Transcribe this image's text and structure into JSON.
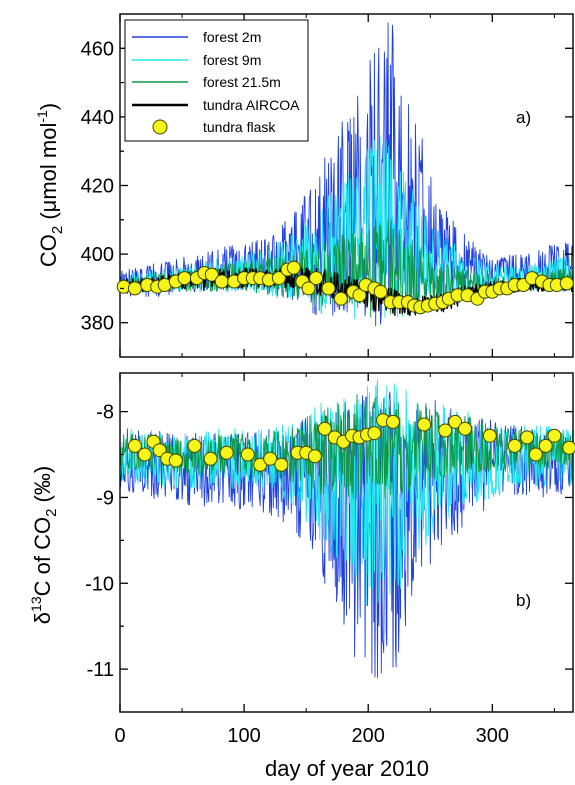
{
  "chart_data": [
    {
      "panel_label": "a)",
      "type": "line",
      "ylabel_main": "CO",
      "ylabel_sub": "2",
      "ylabel_unit": " (μmol mol",
      "ylabel_sup": "-1",
      "ylabel_close": ")",
      "xlim": [
        0,
        365
      ],
      "ylim": [
        370,
        470
      ],
      "yticks": [
        380,
        400,
        420,
        440,
        460
      ],
      "xticks": [
        0,
        100,
        200,
        300
      ],
      "legend_placement": "top-left",
      "legend": {
        "forest2": "forest 2m",
        "forest9": "forest 9m",
        "forest21": "forest 21.5m",
        "aircoa": "tundra AIRCOA",
        "flask": "tundra flask"
      },
      "colors": {
        "forest2": "#1f3fe0",
        "forest9": "#22e6f0",
        "forest21": "#0f9a4a",
        "aircoa": "#000000",
        "flask_fill": "#f5f51a",
        "flask_edge": "#444400"
      },
      "series_envelopes": {
        "note_days": [
          0,
          20,
          40,
          60,
          80,
          100,
          120,
          140,
          150,
          160,
          170,
          180,
          190,
          200,
          210,
          220,
          230,
          240,
          250,
          260,
          280,
          300,
          320,
          340,
          365
        ],
        "forest2_max": [
          395,
          397,
          398,
          400,
          402,
          403,
          405,
          412,
          418,
          425,
          432,
          440,
          448,
          455,
          465,
          470,
          455,
          440,
          425,
          415,
          405,
          400,
          400,
          402,
          405
        ],
        "forest2_min": [
          388,
          387,
          388,
          389,
          389,
          389,
          388,
          386,
          385,
          380,
          382,
          381,
          380,
          379,
          379,
          380,
          380,
          383,
          385,
          386,
          388,
          389,
          389,
          389,
          389
        ],
        "forest9_max": [
          394,
          395,
          396,
          397,
          399,
          400,
          402,
          406,
          410,
          414,
          418,
          422,
          428,
          432,
          435,
          432,
          425,
          418,
          412,
          406,
          400,
          397,
          397,
          398,
          400
        ],
        "forest9_min": [
          389,
          388,
          389,
          389,
          389,
          389,
          388,
          386,
          385,
          381,
          383,
          382,
          381,
          380,
          380,
          381,
          381,
          383,
          385,
          386,
          388,
          389,
          389,
          389,
          389
        ],
        "forest21_max": [
          393,
          394,
          395,
          396,
          397,
          398,
          399,
          401,
          402,
          403,
          404,
          406,
          408,
          410,
          411,
          410,
          406,
          403,
          400,
          398,
          396,
          394,
          394,
          395,
          396
        ],
        "forest21_min": [
          389,
          389,
          389,
          389,
          389,
          389,
          388,
          387,
          386,
          383,
          384,
          383,
          382,
          381,
          381,
          382,
          382,
          384,
          385,
          386,
          388,
          389,
          389,
          389,
          389
        ],
        "aircoa_center": [
          391,
          391,
          392,
          392,
          393,
          393,
          393,
          393,
          393,
          392,
          391,
          390,
          389,
          388,
          387,
          386,
          385,
          385,
          385,
          386,
          388,
          390,
          391,
          391,
          391
        ],
        "aircoa_halfwidth": [
          2,
          2,
          2,
          3,
          3,
          3,
          3,
          3,
          3,
          4,
          4,
          4,
          4,
          4,
          4,
          4,
          3,
          3,
          3,
          3,
          3,
          2,
          2,
          2,
          2
        ]
      },
      "flask_points": [
        [
          3,
          390.5
        ],
        [
          12,
          390
        ],
        [
          22,
          391
        ],
        [
          30,
          390.5
        ],
        [
          36,
          391
        ],
        [
          45,
          392
        ],
        [
          52,
          393
        ],
        [
          62,
          393
        ],
        [
          68,
          394.5
        ],
        [
          74,
          394
        ],
        [
          82,
          392
        ],
        [
          92,
          392
        ],
        [
          100,
          393
        ],
        [
          107,
          393
        ],
        [
          113,
          393
        ],
        [
          120,
          392.5
        ],
        [
          128,
          393
        ],
        [
          135,
          395.5
        ],
        [
          140,
          396
        ],
        [
          147,
          392
        ],
        [
          152,
          390
        ],
        [
          158,
          393
        ],
        [
          168,
          390
        ],
        [
          178,
          387
        ],
        [
          188,
          389
        ],
        [
          193,
          388
        ],
        [
          198,
          391
        ],
        [
          205,
          390
        ],
        [
          210,
          389
        ],
        [
          218,
          386
        ],
        [
          225,
          386
        ],
        [
          232,
          386
        ],
        [
          237,
          385
        ],
        [
          242,
          384.5
        ],
        [
          248,
          385
        ],
        [
          254,
          385.5
        ],
        [
          260,
          386
        ],
        [
          265,
          387
        ],
        [
          272,
          388
        ],
        [
          280,
          388
        ],
        [
          288,
          387
        ],
        [
          294,
          389
        ],
        [
          300,
          389
        ],
        [
          306,
          390
        ],
        [
          312,
          390
        ],
        [
          318,
          391
        ],
        [
          325,
          391
        ],
        [
          332,
          393
        ],
        [
          340,
          392
        ],
        [
          346,
          391
        ],
        [
          352,
          391
        ],
        [
          360,
          391.5
        ]
      ]
    },
    {
      "panel_label": "b)",
      "type": "line",
      "ylabel_main": "δ",
      "ylabel_sup": "13",
      "ylabel_mid": "C of CO",
      "ylabel_sub": "2",
      "ylabel_unit": " (‰)",
      "xlim": [
        0,
        365
      ],
      "ylim": [
        -11.5,
        -7.55
      ],
      "yticks": [
        -8,
        -9,
        -10,
        -11
      ],
      "xticks": [
        0,
        100,
        200,
        300
      ],
      "series_envelopes": {
        "note_days": [
          0,
          20,
          40,
          60,
          80,
          100,
          120,
          140,
          150,
          160,
          170,
          180,
          190,
          200,
          210,
          220,
          230,
          240,
          250,
          260,
          280,
          300,
          320,
          340,
          365
        ],
        "forest2_max": [
          -8.2,
          -8.2,
          -8.25,
          -8.25,
          -8.2,
          -8.25,
          -8.2,
          -8.15,
          -8.05,
          -7.95,
          -7.9,
          -7.85,
          -7.8,
          -7.75,
          -7.75,
          -7.75,
          -7.8,
          -7.85,
          -7.85,
          -7.9,
          -8.0,
          -8.1,
          -8.15,
          -8.15,
          -8.2
        ],
        "forest2_min": [
          -8.9,
          -9.0,
          -9.05,
          -9.1,
          -9.1,
          -9.15,
          -9.2,
          -9.4,
          -9.6,
          -9.9,
          -10.2,
          -10.5,
          -10.9,
          -11.1,
          -11.3,
          -11.2,
          -10.6,
          -10.1,
          -9.8,
          -9.6,
          -9.3,
          -9.1,
          -9.0,
          -9.0,
          -8.95
        ],
        "forest9_max": [
          -8.2,
          -8.2,
          -8.25,
          -8.25,
          -8.2,
          -8.2,
          -8.2,
          -8.1,
          -8.0,
          -7.9,
          -7.8,
          -7.7,
          -7.65,
          -7.6,
          -7.6,
          -7.6,
          -7.7,
          -7.8,
          -7.85,
          -7.9,
          -8.0,
          -8.1,
          -8.15,
          -8.15,
          -8.2
        ],
        "forest9_min": [
          -8.8,
          -8.85,
          -8.9,
          -8.9,
          -8.9,
          -8.9,
          -8.95,
          -9.1,
          -9.3,
          -9.5,
          -9.7,
          -9.9,
          -10.1,
          -10.3,
          -10.4,
          -10.3,
          -10.0,
          -9.7,
          -9.5,
          -9.3,
          -9.1,
          -9.0,
          -8.9,
          -8.9,
          -8.85
        ],
        "forest21_max": [
          -8.25,
          -8.25,
          -8.3,
          -8.3,
          -8.25,
          -8.25,
          -8.25,
          -8.15,
          -8.05,
          -7.95,
          -7.9,
          -7.85,
          -7.8,
          -7.8,
          -7.8,
          -7.8,
          -7.85,
          -7.9,
          -7.95,
          -8.0,
          -8.05,
          -8.15,
          -8.2,
          -8.2,
          -8.25
        ],
        "forest21_min": [
          -8.65,
          -8.7,
          -8.75,
          -8.75,
          -8.75,
          -8.75,
          -8.8,
          -8.85,
          -8.9,
          -8.95,
          -9.0,
          -9.0,
          -9.05,
          -9.05,
          -9.05,
          -9.0,
          -8.95,
          -8.9,
          -8.85,
          -8.8,
          -8.75,
          -8.7,
          -8.7,
          -8.7,
          -8.65
        ]
      },
      "flask_points": [
        [
          12,
          -8.4
        ],
        [
          20,
          -8.5
        ],
        [
          27,
          -8.35
        ],
        [
          32,
          -8.45
        ],
        [
          38,
          -8.55
        ],
        [
          45,
          -8.57
        ],
        [
          60,
          -8.4
        ],
        [
          73,
          -8.55
        ],
        [
          86,
          -8.48
        ],
        [
          103,
          -8.5
        ],
        [
          113,
          -8.62
        ],
        [
          121,
          -8.55
        ],
        [
          130,
          -8.62
        ],
        [
          143,
          -8.48
        ],
        [
          150,
          -8.48
        ],
        [
          157,
          -8.52
        ],
        [
          165,
          -8.2
        ],
        [
          173,
          -8.3
        ],
        [
          180,
          -8.35
        ],
        [
          187,
          -8.28
        ],
        [
          193,
          -8.3
        ],
        [
          199,
          -8.27
        ],
        [
          205,
          -8.25
        ],
        [
          212,
          -8.1
        ],
        [
          220,
          -8.12
        ],
        [
          245,
          -8.15
        ],
        [
          262,
          -8.22
        ],
        [
          270,
          -8.12
        ],
        [
          278,
          -8.2
        ],
        [
          298,
          -8.28
        ],
        [
          318,
          -8.4
        ],
        [
          328,
          -8.3
        ],
        [
          335,
          -8.5
        ],
        [
          343,
          -8.4
        ],
        [
          350,
          -8.28
        ],
        [
          362,
          -8.42
        ]
      ]
    }
  ],
  "xlabel": "day of year 2010"
}
